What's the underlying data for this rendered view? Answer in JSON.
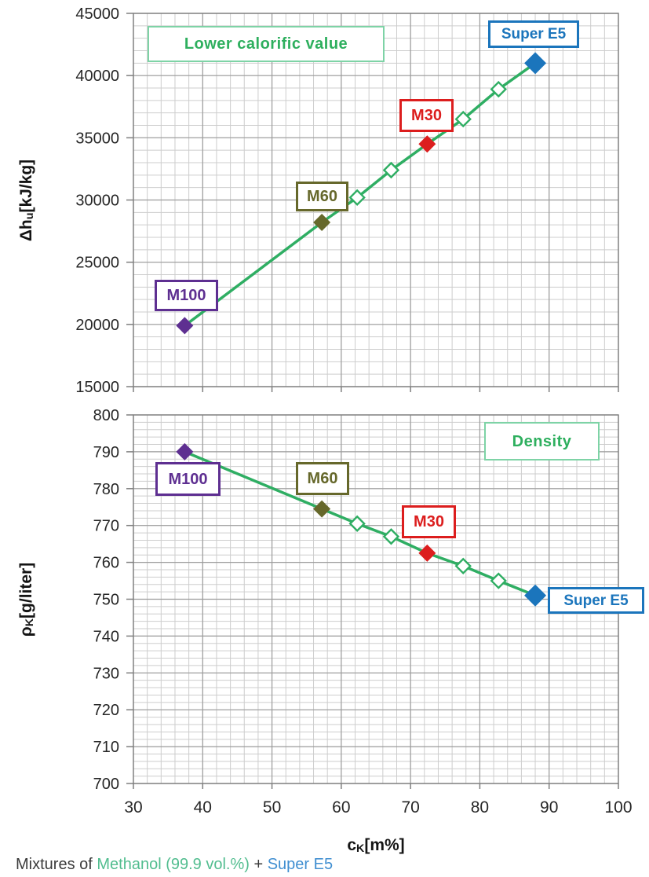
{
  "colors": {
    "line_green": "#2FAE63",
    "annotation_green_text": "#2EAF5E",
    "annotation_green_border": "#7ED3A6",
    "m100_purple": "#5E2F91",
    "m60_olive": "#66682B",
    "m30_red": "#DC1E1E",
    "super_e5_blue": "#1B75BC",
    "caption_methanol_green": "#52BD8F",
    "caption_super_e5_blue": "#418FD1",
    "grid_minor": "#CDCDCD",
    "grid_major": "#9C9C9C",
    "axis_line": "#7F7F7F",
    "tick_text": "#262626"
  },
  "caption": {
    "parts": [
      {
        "text": "Mixtures of ",
        "color": "#3B3B3B"
      },
      {
        "text": "Methanol (99.9 vol.%)",
        "color": "#52BD8F"
      },
      {
        "text": " + ",
        "color": "#3B3B3B"
      },
      {
        "text": "Super E5",
        "color": "#418FD1"
      }
    ]
  },
  "chart_data": [
    {
      "type": "line",
      "title": "Lower calorific value",
      "xlabel": "c_K [m%]",
      "ylabel": "dh_u [kJ/kg]",
      "ylabel_parts": {
        "prefix": "Δh",
        "sub": "u",
        "suffix": " [kJ/kg]"
      },
      "xlim": [
        30,
        100
      ],
      "ylim": [
        15000,
        45000
      ],
      "x_ticks": [
        30,
        40,
        50,
        60,
        70,
        80,
        90,
        100
      ],
      "y_ticks": [
        45000,
        40000,
        35000,
        30000,
        25000,
        20000,
        15000
      ],
      "x_major_step": 10,
      "x_minor_step": 2,
      "y_major_step": 5000,
      "y_minor_step": 1000,
      "grid": "minor+major",
      "x_tick_labels_visible": false,
      "legend": "none",
      "line_color": "#2FAE63",
      "series": [
        {
          "name": "Mixtures of Methanol (99.9 vol.%) + Super E5",
          "points": [
            {
              "label": "M100",
              "x": 37.4,
              "y": 19900,
              "marker": "solid",
              "color": "#5E2F91"
            },
            {
              "label": "M60",
              "x": 57.2,
              "y": 28200,
              "marker": "solid",
              "color": "#66682B"
            },
            {
              "x": 62.3,
              "y": 30200,
              "marker": "open"
            },
            {
              "x": 67.2,
              "y": 32400,
              "marker": "open"
            },
            {
              "label": "M30",
              "x": 72.4,
              "y": 34500,
              "marker": "solid",
              "color": "#DC1E1E"
            },
            {
              "x": 77.6,
              "y": 36500,
              "marker": "open"
            },
            {
              "x": 82.7,
              "y": 38900,
              "marker": "open"
            },
            {
              "label": "Super E5",
              "x": 88.0,
              "y": 41000,
              "marker": "solid",
              "color": "#1B75BC",
              "size": "large"
            }
          ]
        }
      ]
    },
    {
      "type": "line",
      "title": "Density",
      "xlabel": "c_K [m%]",
      "xlabel_parts": {
        "prefix": "c",
        "sub": "K",
        "suffix": " [m%]"
      },
      "ylabel": "rho_K [g/liter]",
      "ylabel_parts": {
        "prefix": "ρ",
        "sub": "K",
        "suffix": " [g/liter]"
      },
      "xlim": [
        30,
        100
      ],
      "ylim": [
        700,
        800
      ],
      "x_ticks": [
        30,
        40,
        50,
        60,
        70,
        80,
        90,
        100
      ],
      "y_ticks": [
        800,
        790,
        780,
        770,
        760,
        750,
        740,
        730,
        720,
        710,
        700
      ],
      "x_major_step": 10,
      "x_minor_step": 2,
      "y_major_step": 10,
      "y_minor_step": 2,
      "grid": "minor+major",
      "x_tick_labels_visible": true,
      "legend": "none",
      "line_color": "#2FAE63",
      "series": [
        {
          "name": "Mixtures of Methanol (99.9 vol.%) + Super E5",
          "points": [
            {
              "label": "M100",
              "x": 37.4,
              "y": 790.0,
              "marker": "solid",
              "color": "#5E2F91"
            },
            {
              "label": "M60",
              "x": 57.2,
              "y": 774.5,
              "marker": "solid",
              "color": "#66682B"
            },
            {
              "x": 62.3,
              "y": 770.5,
              "marker": "open"
            },
            {
              "x": 67.2,
              "y": 767.0,
              "marker": "open"
            },
            {
              "label": "M30",
              "x": 72.4,
              "y": 762.5,
              "marker": "solid",
              "color": "#DC1E1E"
            },
            {
              "x": 77.6,
              "y": 759.0,
              "marker": "open"
            },
            {
              "x": 82.7,
              "y": 755.0,
              "marker": "open"
            },
            {
              "label": "Super E5",
              "x": 88.0,
              "y": 751.0,
              "marker": "solid",
              "color": "#1B75BC",
              "size": "large"
            }
          ]
        }
      ]
    }
  ]
}
